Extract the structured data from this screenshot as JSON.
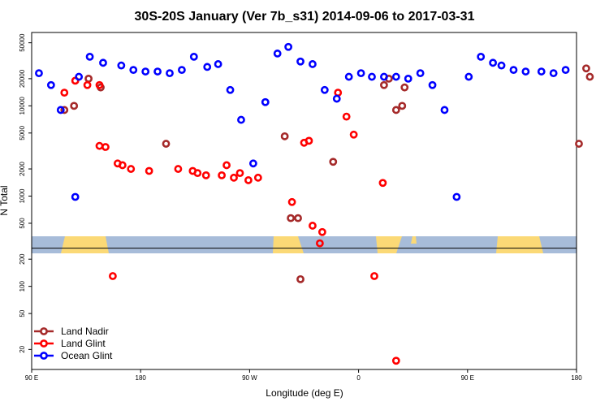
{
  "chart_data": {
    "type": "scatter",
    "title": "30S-20S January (Ver 7b_s31)   2014-09-06 to 2017-03-31",
    "xlabel": "Longitude (deg E)",
    "ylabel": "N Total",
    "y_scale": "log",
    "xlim": [
      90,
      540
    ],
    "ylim": [
      12,
      65000
    ],
    "x_ticks": [
      {
        "value": 90,
        "label": "90 E"
      },
      {
        "value": 180,
        "label": "180"
      },
      {
        "value": 270,
        "label": "90 W"
      },
      {
        "value": 360,
        "label": "0"
      },
      {
        "value": 450,
        "label": "90 E"
      },
      {
        "value": 540,
        "label": "180"
      }
    ],
    "y_ticks": [
      {
        "value": 20,
        "label": "20"
      },
      {
        "value": 50,
        "label": "50"
      },
      {
        "value": 100,
        "label": "100"
      },
      {
        "value": 200,
        "label": "200"
      },
      {
        "value": 500,
        "label": "500"
      },
      {
        "value": 1000,
        "label": "1000"
      },
      {
        "value": 2000,
        "label": "2000"
      },
      {
        "value": 5000,
        "label": "5000"
      },
      {
        "value": 10000,
        "label": "10000"
      },
      {
        "value": 20000,
        "label": "20000"
      },
      {
        "value": 50000,
        "label": "50000"
      }
    ],
    "legend_position": "bottom-left",
    "reference_line": 265,
    "colors": {
      "band": "#a7bcd9",
      "land": "#fbd976"
    },
    "series": [
      {
        "name": "Land Nadir",
        "color": "#a52a2a",
        "x": [
          117,
          125,
          137,
          147,
          201,
          299,
          304,
          310,
          312,
          339,
          381,
          385,
          391,
          396,
          398,
          542,
          548,
          551
        ],
        "y": [
          9000,
          10000,
          20000,
          16000,
          3800,
          4600,
          570,
          570,
          120,
          2400,
          17000,
          20000,
          9000,
          10000,
          16000,
          3800,
          26000,
          21000
        ]
      },
      {
        "name": "Land Glint",
        "color": "#ff0000",
        "x": [
          117,
          126,
          136,
          146,
          146,
          151,
          157,
          161,
          165,
          172,
          187,
          211,
          223,
          227,
          234,
          247,
          251,
          257,
          262,
          269,
          277,
          305,
          315,
          319,
          322,
          328,
          330,
          343,
          350,
          356,
          373,
          380,
          391
        ],
        "y": [
          14000,
          19000,
          17000,
          17000,
          3600,
          3500,
          130,
          2300,
          2200,
          2000,
          1900,
          2000,
          1900,
          1800,
          1700,
          1700,
          2200,
          1600,
          1800,
          1500,
          1600,
          860,
          3900,
          4100,
          470,
          300,
          400,
          14000,
          7600,
          4800,
          130,
          1400,
          15
        ]
      },
      {
        "name": "Ocean Glint",
        "color": "#0000ff",
        "x": [
          96,
          106,
          114,
          126,
          129,
          138,
          149,
          164,
          174,
          184,
          194,
          204,
          214,
          224,
          235,
          244,
          254,
          263,
          273,
          283,
          293,
          302,
          312,
          322,
          332,
          342,
          352,
          362,
          371,
          381,
          391,
          401,
          411,
          421,
          431,
          441,
          451,
          461,
          471,
          478,
          488,
          498,
          511,
          521,
          531
        ],
        "y": [
          23000,
          17000,
          9000,
          980,
          21000,
          35000,
          30000,
          28000,
          25000,
          24000,
          24000,
          23000,
          25000,
          35000,
          27000,
          29000,
          15000,
          7000,
          2300,
          11000,
          38000,
          45000,
          31000,
          29000,
          15000,
          12000,
          21000,
          23000,
          21000,
          21000,
          21000,
          20000,
          23000,
          17000,
          9000,
          980,
          21000,
          35000,
          30000,
          28000,
          25000,
          24000,
          24000,
          23000,
          25000
        ]
      }
    ]
  }
}
